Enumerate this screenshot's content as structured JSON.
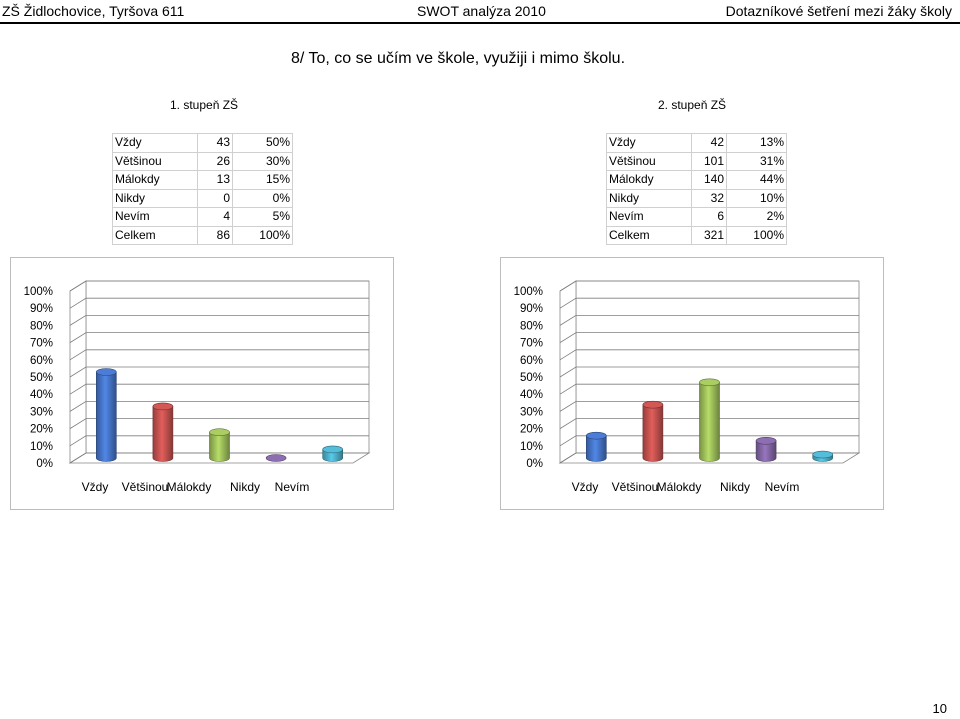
{
  "header": {
    "left": "ZŠ Židlochovice, Tyršova 611",
    "center": "SWOT analýza 2010",
    "right": "Dotazníkové šetření mezi žáky školy"
  },
  "title": "8/ To, co se učím ve škole, využiji i mimo školu.",
  "section1": {
    "label": "1. stupeň ZŠ",
    "rows": [
      [
        "Vždy",
        "43",
        "50%"
      ],
      [
        "Většinou",
        "26",
        "30%"
      ],
      [
        "Málokdy",
        "13",
        "15%"
      ],
      [
        "Nikdy",
        "0",
        "0%"
      ],
      [
        "Nevím",
        "4",
        "5%"
      ],
      [
        "Celkem",
        "86",
        "100%"
      ]
    ]
  },
  "section2": {
    "label": "2. stupeň ZŠ",
    "rows": [
      [
        "Vždy",
        "42",
        "13%"
      ],
      [
        "Většinou",
        "101",
        "31%"
      ],
      [
        "Málokdy",
        "140",
        "44%"
      ],
      [
        "Nikdy",
        "32",
        "10%"
      ],
      [
        "Nevím",
        "6",
        "2%"
      ],
      [
        "Celkem",
        "321",
        "100%"
      ]
    ]
  },
  "chart_data": [
    {
      "type": "bar",
      "categories": [
        "Vždy",
        "Většinou",
        "Málokdy",
        "Nikdy",
        "Nevím"
      ],
      "values": [
        50,
        30,
        15,
        0,
        5
      ],
      "yticks": [
        "0%",
        "10%",
        "20%",
        "30%",
        "40%",
        "50%",
        "60%",
        "70%",
        "80%",
        "90%",
        "100%"
      ],
      "ylim": [
        0,
        100
      ],
      "colors": [
        "#4472c4",
        "#c0504d",
        "#9bbb59",
        "#8064a2",
        "#4bacc6"
      ]
    },
    {
      "type": "bar",
      "categories": [
        "Vždy",
        "Většinou",
        "Málokdy",
        "Nikdy",
        "Nevím"
      ],
      "values": [
        13,
        31,
        44,
        10,
        2
      ],
      "yticks": [
        "0%",
        "10%",
        "20%",
        "30%",
        "40%",
        "50%",
        "60%",
        "70%",
        "80%",
        "90%",
        "100%"
      ],
      "ylim": [
        0,
        100
      ],
      "colors": [
        "#4472c4",
        "#c0504d",
        "#9bbb59",
        "#8064a2",
        "#4bacc6"
      ]
    }
  ],
  "page_number": "10"
}
